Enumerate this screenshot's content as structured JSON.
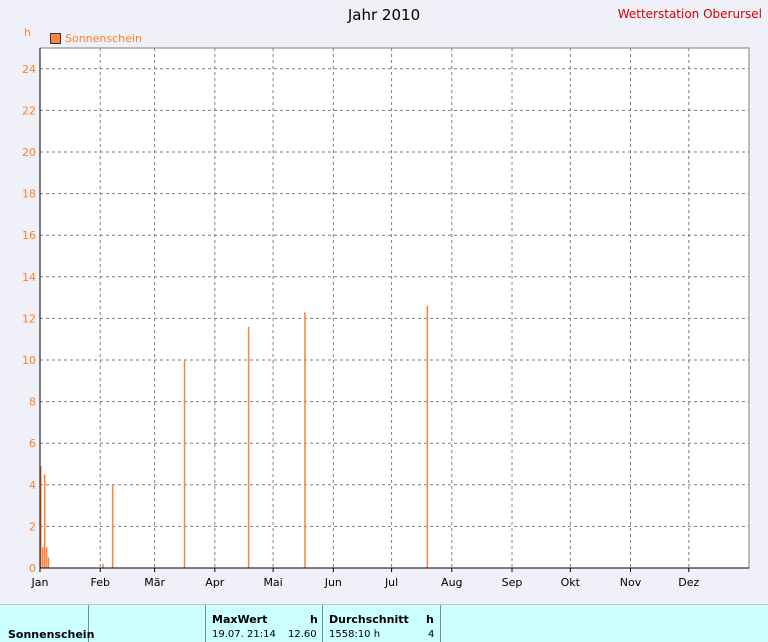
{
  "station": "Wetterstation Oberursel",
  "chart_data": {
    "type": "bar",
    "title": "Jahr 2010",
    "ylabel": "h",
    "ylim": [
      0,
      25
    ],
    "yticks": [
      0,
      2,
      4,
      6,
      8,
      10,
      12,
      14,
      16,
      18,
      20,
      22,
      24
    ],
    "months": [
      "Jan",
      "Feb",
      "Mär",
      "Apr",
      "Mai",
      "Jun",
      "Jul",
      "Aug",
      "Sep",
      "Okt",
      "Nov",
      "Dez"
    ],
    "grid": true,
    "legend_position": "top-left",
    "series": [
      {
        "name": "Sonnenschein",
        "color": "#ff8442",
        "values": [
          4.9,
          1.0,
          4.5,
          1.0,
          0.5,
          0,
          0,
          0,
          0,
          0,
          0,
          0,
          0,
          0,
          0,
          0,
          0,
          0,
          0,
          0,
          0,
          0,
          0,
          0,
          0,
          0,
          0,
          0,
          0,
          0,
          0,
          0,
          0.2,
          0,
          0,
          0,
          0,
          4.0,
          0,
          0,
          0,
          0,
          0,
          0,
          0,
          0,
          0,
          0,
          0,
          0,
          0,
          0,
          0,
          0,
          0,
          0,
          0,
          0,
          0,
          0,
          0,
          0,
          0,
          0,
          0,
          0,
          0,
          0,
          0,
          0,
          0,
          0,
          0,
          0,
          10,
          0,
          0,
          0,
          0,
          0,
          0,
          0,
          0,
          0,
          0,
          0,
          0,
          0,
          0,
          0,
          0,
          0,
          0,
          0,
          0,
          0,
          0,
          0,
          0,
          0,
          0,
          0,
          0,
          0,
          0,
          0,
          0,
          11.6,
          0,
          0,
          0,
          0,
          0,
          0,
          0,
          0,
          0,
          0,
          0,
          0,
          0,
          0,
          0,
          0,
          0,
          0,
          0,
          0,
          0,
          0,
          0,
          0,
          0,
          0,
          0,
          0,
          12.3,
          0,
          0,
          0,
          0,
          0,
          0,
          0,
          0,
          0,
          0,
          0,
          0,
          0,
          0,
          0,
          0,
          0,
          0,
          0,
          0,
          0,
          0,
          0,
          0,
          0,
          0,
          0,
          0,
          0,
          0,
          0,
          0,
          0,
          0,
          0,
          0,
          0,
          0,
          0,
          0,
          0,
          0,
          0,
          0,
          0,
          0,
          0,
          0,
          0,
          0,
          0,
          0,
          0,
          0,
          0,
          0,
          0,
          0,
          0,
          0,
          0,
          0,
          12.6,
          0,
          0,
          0,
          0,
          0,
          0,
          0,
          0,
          0,
          0,
          0,
          0,
          0,
          0,
          0,
          0,
          0,
          0,
          0,
          0,
          0,
          0,
          0,
          0,
          0,
          0,
          0,
          0,
          0,
          0,
          0,
          0,
          0,
          0,
          0,
          0,
          0,
          0,
          0,
          0,
          0,
          0,
          0,
          0,
          0,
          0,
          0,
          0,
          0,
          0,
          0,
          0,
          0,
          0,
          0,
          0,
          0,
          0,
          0,
          0,
          0,
          0,
          0,
          0,
          0,
          0,
          0,
          0,
          0,
          0,
          0,
          0,
          0,
          0,
          0,
          0,
          0,
          0,
          0,
          0,
          0,
          0,
          0,
          0,
          0,
          0,
          0,
          0,
          0,
          0,
          0,
          0,
          0,
          0,
          0,
          0,
          0,
          0,
          0,
          0,
          0,
          0,
          0,
          0,
          0,
          0,
          0,
          0,
          0,
          0,
          0,
          0,
          0,
          0,
          0,
          0,
          0,
          0,
          0,
          0,
          0,
          0,
          0,
          0,
          0,
          0,
          0,
          0,
          0,
          0,
          0,
          0,
          0,
          0,
          0,
          0,
          0,
          0,
          0,
          0,
          0,
          0,
          0,
          0,
          0,
          0,
          0,
          0,
          0,
          0,
          0,
          0,
          0,
          0,
          0,
          0,
          0,
          0,
          0,
          0,
          0,
          0,
          0,
          0,
          0
        ]
      }
    ]
  },
  "footer": {
    "row_label": "Sonnenschein",
    "max_label": "MaxWert",
    "max_unit": "h",
    "max_time": "19.07.  21:14",
    "max_value": "12.60",
    "avg_label": "Durchschnitt",
    "avg_unit": "h",
    "avg_value": "1558:10 h",
    "avg_extra": "4"
  }
}
